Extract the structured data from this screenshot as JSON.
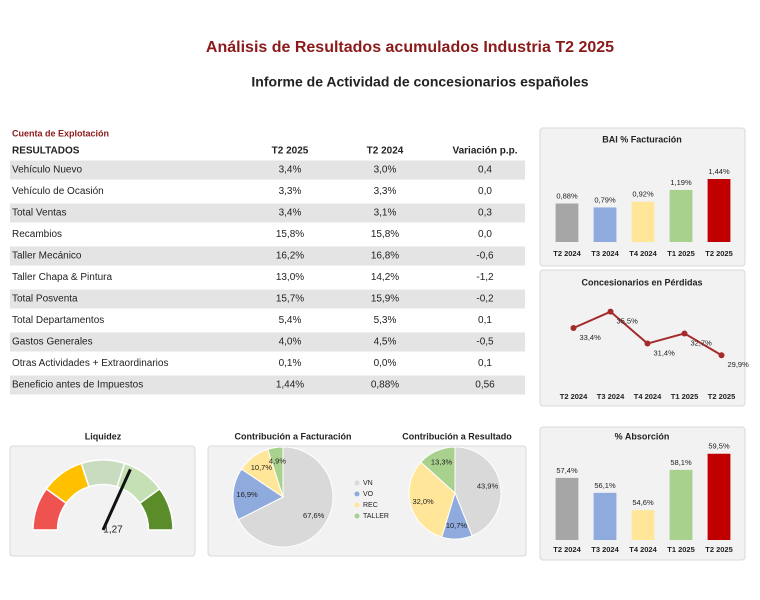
{
  "header": {
    "title": "Análisis de Resultados acumulados Industria T2 2025",
    "subtitle": "Informe de Actividad de concesionarios españoles"
  },
  "table": {
    "caption": "Cuenta de Explotación",
    "columns": [
      "RESULTADOS",
      "T2 2025",
      "T2 2024",
      "Variación p.p."
    ],
    "rows": [
      [
        "Vehículo Nuevo",
        "3,4%",
        "3,0%",
        "0,4"
      ],
      [
        "Vehículo de Ocasión",
        "3,3%",
        "3,3%",
        "0,0"
      ],
      [
        "Total Ventas",
        "3,4%",
        "3,1%",
        "0,3"
      ],
      [
        "Recambios",
        "15,8%",
        "15,8%",
        "0,0"
      ],
      [
        "Taller Mecánico",
        "16,2%",
        "16,8%",
        "-0,6"
      ],
      [
        "Taller Chapa & Pintura",
        "13,0%",
        "14,2%",
        "-1,2"
      ],
      [
        "Total Posventa",
        "15,7%",
        "15,9%",
        "-0,2"
      ],
      [
        "Total Departamentos",
        "5,4%",
        "5,3%",
        "0,1"
      ],
      [
        "Gastos Generales",
        "4,0%",
        "4,5%",
        "-0,5"
      ],
      [
        "Otras Actividades + Extraordinarios",
        "0,1%",
        "0,0%",
        "0,1"
      ],
      [
        "Beneficio antes de Impuestos",
        "1,44%",
        "0,88%",
        "0,56"
      ]
    ]
  },
  "chart_data": [
    {
      "type": "bar",
      "title": "BAI % Facturación",
      "categories": [
        "T2 2024",
        "T3 2024",
        "T4 2024",
        "T1 2025",
        "T2 2025"
      ],
      "values": [
        0.88,
        0.79,
        0.92,
        1.19,
        1.44
      ],
      "value_labels": [
        "0,88%",
        "0,79%",
        "0,92%",
        "1,19%",
        "1,44%"
      ],
      "colors": [
        "#a6a6a6",
        "#8faadc",
        "#ffe699",
        "#a9d18e",
        "#c00000"
      ],
      "ylim": [
        0,
        1.6
      ]
    },
    {
      "type": "line",
      "title": "Concesionarios en Pérdidas",
      "categories": [
        "T2 2024",
        "T3 2024",
        "T4 2024",
        "T1 2025",
        "T2 2025"
      ],
      "values": [
        33.4,
        35.5,
        31.4,
        32.7,
        29.9
      ],
      "value_labels": [
        "33,4%",
        "35,5%",
        "31,4%",
        "32,7%",
        "29,9%"
      ],
      "color": "#a52a2a",
      "ylim": [
        28,
        37
      ]
    },
    {
      "type": "gauge",
      "title": "Liquidez",
      "value": 1.27,
      "value_label": "1,27",
      "ylim": [
        0,
        2
      ]
    },
    {
      "type": "pie",
      "title": "Contribución a Facturación",
      "categories": [
        "VN",
        "VO",
        "REC",
        "TALLER"
      ],
      "values": [
        67.6,
        16.9,
        10.7,
        4.9
      ],
      "value_labels": [
        "67,6%",
        "16,9%",
        "10,7%",
        "4,9%"
      ],
      "colors": [
        "#d9d9d9",
        "#8faadc",
        "#ffe699",
        "#a9d18e"
      ]
    },
    {
      "type": "pie",
      "title": "Contribución a Resultado",
      "values": [
        43.9,
        10.7,
        32.0,
        13.3
      ],
      "value_labels": [
        "43,9%",
        "10,7%",
        "32,0%",
        "13,3%"
      ],
      "colors": [
        "#d9d9d9",
        "#8faadc",
        "#ffe699",
        "#a9d18e"
      ]
    },
    {
      "type": "bar",
      "title": "% Absorción",
      "categories": [
        "T2 2024",
        "T3 2024",
        "T4 2024",
        "T1 2025",
        "T2 2025"
      ],
      "values": [
        57.4,
        56.1,
        54.6,
        58.1,
        59.5
      ],
      "value_labels": [
        "57,4%",
        "56,1%",
        "54,6%",
        "58,1%",
        "59,5%"
      ],
      "colors": [
        "#a6a6a6",
        "#8faadc",
        "#ffe699",
        "#a9d18e",
        "#c00000"
      ],
      "ylim": [
        52,
        60
      ]
    }
  ]
}
